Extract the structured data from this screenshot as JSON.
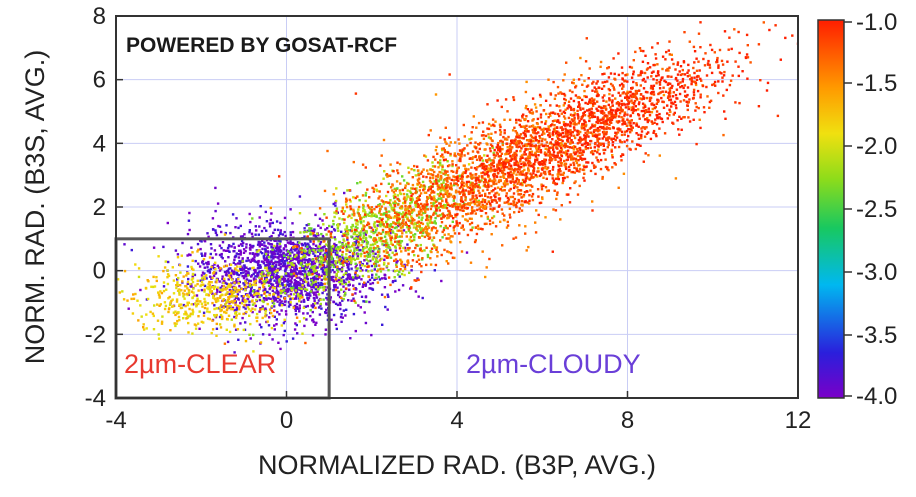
{
  "chart_data": {
    "type": "scatter",
    "watermark": "POWERED BY GOSAT-RCF",
    "xlabel": "NORMALIZED RAD. (B3P, AVG.)",
    "ylabel": "NORM. RAD. (B3S, AVG.)",
    "xlim": [
      -4,
      12
    ],
    "ylim": [
      -4,
      8
    ],
    "xticks": [
      "-4",
      "0",
      "4",
      "8",
      "12"
    ],
    "yticks": [
      "-4",
      "-2",
      "0",
      "2",
      "4",
      "6",
      "8"
    ],
    "grid": true,
    "colorbar": {
      "range": [
        -4.0,
        -1.0
      ],
      "ticks": [
        "-1.0",
        "-1.5",
        "-2.0",
        "-2.5",
        "-3.0",
        "-3.5",
        "-4.0"
      ],
      "colormap": "rainbow",
      "placement": "right"
    },
    "annotations": [
      {
        "text": "2µm-CLEAR",
        "color": "#e8392f"
      },
      {
        "text": "2µm-CLOUDY",
        "color": "#6a3fd8"
      }
    ],
    "threshold_box": {
      "x": [
        -4,
        1
      ],
      "y": [
        -4,
        1
      ],
      "color": "#555555"
    },
    "clusters": [
      {
        "name": "",
        "center": [
          0.0,
          0.0
        ],
        "spread": [
          1.1,
          0.75
        ],
        "count": 1800,
        "value": -3.9
      },
      {
        "name": "",
        "center": [
          -1.8,
          -0.8
        ],
        "spread": [
          0.9,
          0.55
        ],
        "count": 500,
        "value": -1.8
      },
      {
        "name": "",
        "center": [
          2.0,
          1.2
        ],
        "spread": [
          1.2,
          0.7
        ],
        "count": 900,
        "value": -2.2
      },
      {
        "name": "",
        "center": [
          4.5,
          2.8
        ],
        "spread": [
          1.8,
          0.9
        ],
        "count": 1800,
        "value": -1.3
      },
      {
        "name": "",
        "center": [
          7.2,
          4.6
        ],
        "spread": [
          1.7,
          0.7
        ],
        "count": 1400,
        "value": -1.05
      }
    ],
    "outliers": [
      [
        9.9,
        6.5
      ],
      [
        10.6,
        5.3
      ],
      [
        11.5,
        4.9
      ],
      [
        10.2,
        6.1
      ],
      [
        -0.2,
        3.0
      ],
      [
        1.6,
        5.6
      ],
      [
        3.8,
        6.2
      ]
    ]
  }
}
